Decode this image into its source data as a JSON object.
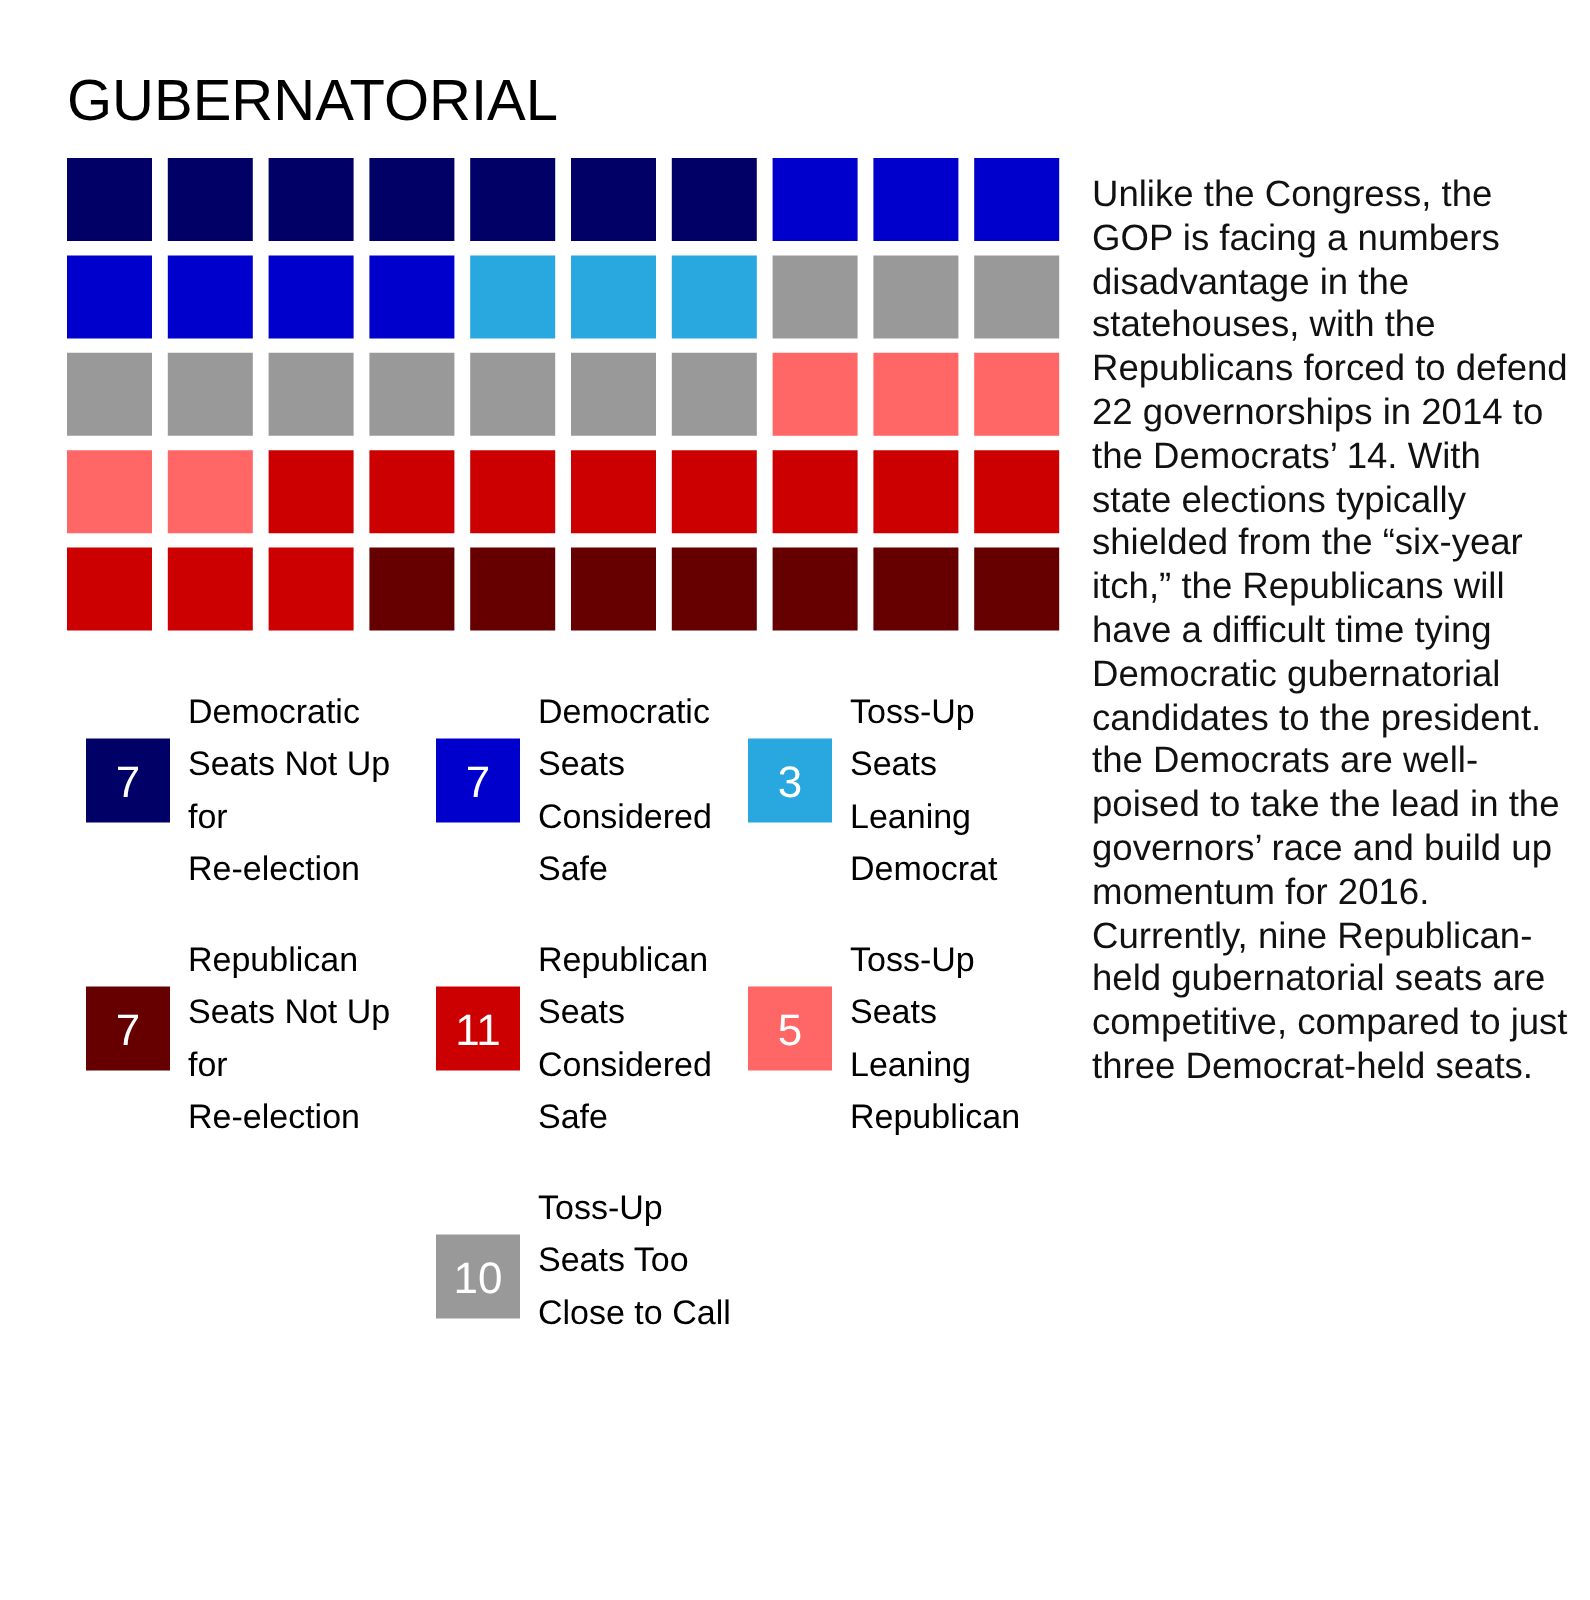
{
  "chart_data": {
    "type": "other",
    "title": "GUBERNATORIAL",
    "categories": [
      "Democratic Seats Not Up for Re-election",
      "Democratic Seats Considered Safe",
      "Toss-Up Seats Leaning Democrat",
      "Toss-Up Seats Too Close to Call",
      "Toss-Up Seats Leaning Republican",
      "Republican Seats Considered Safe",
      "Republican Seats Not Up for Re-election"
    ],
    "values": [
      7,
      7,
      3,
      10,
      5,
      11,
      7
    ],
    "colors": [
      "#000066",
      "#0000cc",
      "#29a8e0",
      "#999999",
      "#ff6666",
      "#cc0000",
      "#660000"
    ],
    "data_labels": true,
    "annotations": [
      "Unlike the Congress, the GOP is facing a numbers disadvantage in the statehouses, with the Republicans forced to defend 22 governorships in 2014 to the Democrats’ 14. With state elections typically shielded from the “six-year itch,” the Republicans will have a difficult time tying Democratic gubernatorial candidates to the president. the Democrats are well-poised to take the lead in the governors’ race and build up momentum for 2016. Currently, nine Republican-held gubernatorial seats are competitive, compared to just three Democrat-held seats."
    ]
  }
}
